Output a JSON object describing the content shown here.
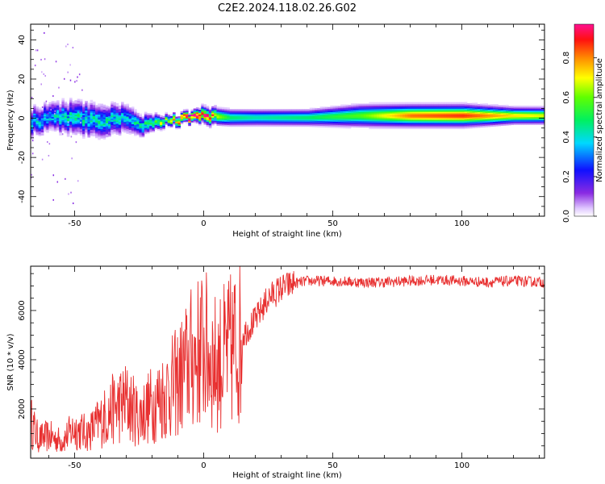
{
  "title": "C2E2.2024.118.02.26.G02",
  "chart_data": [
    {
      "type": "heatmap",
      "title": "C2E2.2024.118.02.26.G02",
      "xlabel": "Height of straight line (km)",
      "ylabel": "Frequency (Hz)",
      "xlim": [
        -67,
        132
      ],
      "ylim": [
        -50,
        48
      ],
      "x_ticks": [
        -50,
        0,
        50,
        100
      ],
      "y_ticks": [
        -40,
        -20,
        0,
        20,
        40
      ],
      "colorbar": {
        "label": "Normalized spectral amplitude",
        "range": [
          0,
          0.97
        ],
        "ticks": [
          0.0,
          0.2,
          0.4,
          0.6,
          0.8
        ],
        "tick_labels": [
          "0.0",
          "0.2",
          "0.4",
          "0.6",
          "0.8"
        ],
        "colormap": "white-purple-blue-cyan-green-yellow-orange-red-pink"
      },
      "ridge": {
        "x": [
          -67,
          -60,
          -50,
          -40,
          -30,
          -25,
          -20,
          -15,
          -10,
          -5,
          0,
          10,
          20,
          40,
          60,
          80,
          100,
          120,
          132
        ],
        "center_hz": [
          -2,
          0,
          0,
          -1,
          0,
          -4,
          -2,
          -2,
          -1,
          0,
          1,
          0,
          0,
          0,
          1,
          1,
          1,
          1,
          1
        ],
        "half_width_hz": [
          5,
          5,
          6,
          6,
          5,
          4,
          3,
          2,
          2,
          2,
          3,
          3,
          3,
          3,
          4,
          4,
          4,
          3,
          3
        ],
        "peak_amplitude": [
          0.35,
          0.35,
          0.4,
          0.4,
          0.35,
          0.4,
          0.5,
          0.6,
          0.8,
          0.9,
          0.85,
          0.5,
          0.45,
          0.5,
          0.6,
          0.85,
          0.9,
          0.75,
          0.7
        ]
      }
    },
    {
      "type": "line",
      "xlabel": "Height of straight line (km)",
      "ylabel": "SNR (10 * v/v)",
      "xlim": [
        -67,
        132
      ],
      "ylim": [
        0,
        7800
      ],
      "x_ticks": [
        -50,
        0,
        50,
        100
      ],
      "y_ticks": [
        2000,
        4000,
        6000
      ],
      "color": "#e83030",
      "series": [
        {
          "x": [
            -67,
            -64,
            -60,
            -55,
            -50,
            -45,
            -40,
            -35,
            -30,
            -25,
            -20,
            -15,
            -10,
            -5,
            0,
            5,
            10,
            15,
            20,
            25,
            30,
            35,
            40,
            50,
            60,
            70,
            80,
            90,
            100,
            110,
            120,
            132
          ],
          "values": [
            1500,
            800,
            900,
            700,
            1200,
            1000,
            1500,
            2000,
            2300,
            1700,
            2200,
            2600,
            3100,
            4000,
            4500,
            3800,
            4300,
            5000,
            5600,
            6500,
            6900,
            7100,
            7200,
            7200,
            7150,
            7150,
            7200,
            7250,
            7200,
            7150,
            7200,
            7150
          ]
        }
      ]
    }
  ]
}
